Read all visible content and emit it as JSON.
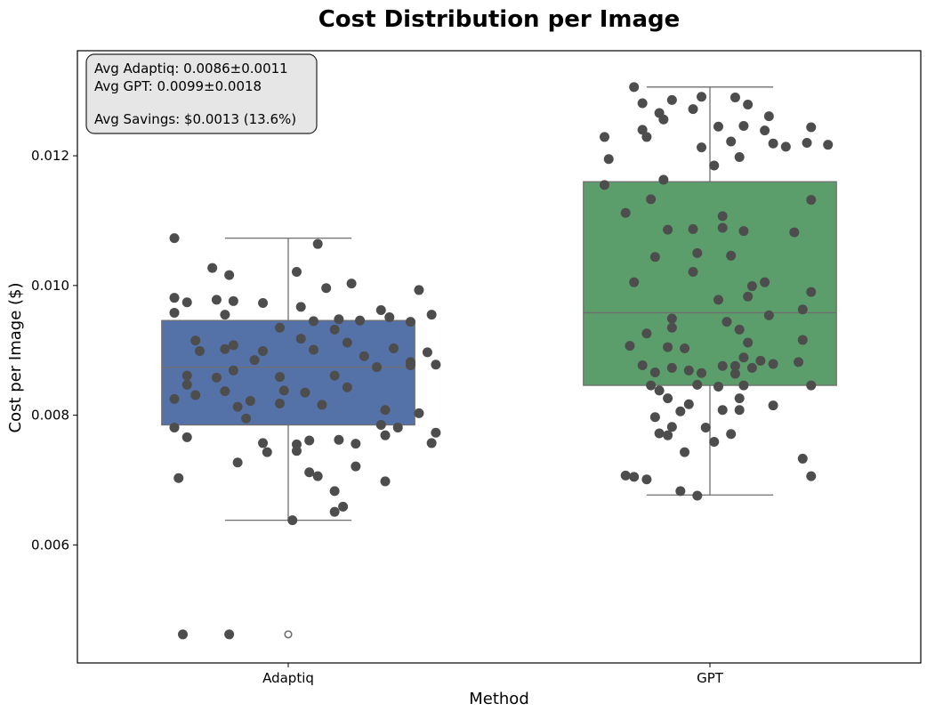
{
  "chart_data": {
    "type": "box",
    "title": "Cost Distribution per Image",
    "xlabel": "Method",
    "ylabel": "Cost per Image ($)",
    "categories": [
      "Adaptiq",
      "GPT"
    ],
    "ylim": [
      0.00418,
      0.01362
    ],
    "yticks": [
      0.006,
      0.008,
      0.01,
      0.012
    ],
    "ytick_labels": [
      "0.006",
      "0.008",
      "0.010",
      "0.012"
    ],
    "grid": false,
    "colors": {
      "Adaptiq": "#5572a8",
      "GPT": "#5b9e6c",
      "points": "#4d4d4d",
      "whisker": "#6e6e6e"
    },
    "stats_box": {
      "lines": [
        "Avg Adaptiq: 0.0086±0.0011",
        "Avg GPT: 0.0099±0.0018",
        "",
        "Avg Savings: $0.0013 (13.6%)"
      ],
      "position": "top-left"
    },
    "series": [
      {
        "name": "Adaptiq",
        "box": {
          "whisker_low": 0.00638,
          "q1": 0.00785,
          "median": 0.00874,
          "q3": 0.00946,
          "whisker_high": 0.01073
        },
        "outliers": [
          0.00462
        ],
        "points": [
          [
            -0.27,
            0.01073
          ],
          [
            0.07,
            0.01064
          ],
          [
            -0.18,
            0.01027
          ],
          [
            -0.14,
            0.01016
          ],
          [
            0.02,
            0.01021
          ],
          [
            0.15,
            0.01003
          ],
          [
            0.09,
            0.00996
          ],
          [
            0.31,
            0.00993
          ],
          [
            -0.27,
            0.00981
          ],
          [
            -0.17,
            0.00978
          ],
          [
            -0.24,
            0.00974
          ],
          [
            -0.13,
            0.00976
          ],
          [
            -0.06,
            0.00973
          ],
          [
            0.22,
            0.00962
          ],
          [
            0.03,
            0.00967
          ],
          [
            -0.27,
            0.00958
          ],
          [
            -0.15,
            0.00955
          ],
          [
            0.12,
            0.00948
          ],
          [
            0.24,
            0.00951
          ],
          [
            0.34,
            0.00955
          ],
          [
            0.06,
            0.00945
          ],
          [
            0.17,
            0.00946
          ],
          [
            0.29,
            0.00944
          ],
          [
            -0.02,
            0.00935
          ],
          [
            0.11,
            0.00932
          ],
          [
            -0.22,
            0.00915
          ],
          [
            0.03,
            0.00918
          ],
          [
            -0.13,
            0.00908
          ],
          [
            0.14,
            0.00912
          ],
          [
            -0.21,
            0.00899
          ],
          [
            -0.15,
            0.00902
          ],
          [
            -0.06,
            0.00899
          ],
          [
            0.06,
            0.00901
          ],
          [
            0.25,
            0.00903
          ],
          [
            0.33,
            0.00897
          ],
          [
            -0.08,
            0.00885
          ],
          [
            0.18,
            0.00891
          ],
          [
            0.29,
            0.00882
          ],
          [
            0.21,
            0.00874
          ],
          [
            0.29,
            0.00877
          ],
          [
            0.35,
            0.00878
          ],
          [
            -0.13,
            0.00869
          ],
          [
            0.11,
            0.00861
          ],
          [
            -0.24,
            0.00861
          ],
          [
            -0.17,
            0.00858
          ],
          [
            -0.02,
            0.00859
          ],
          [
            -0.24,
            0.00847
          ],
          [
            -0.15,
            0.00837
          ],
          [
            -0.01,
            0.00838
          ],
          [
            0.04,
            0.00835
          ],
          [
            0.14,
            0.00843
          ],
          [
            -0.22,
            0.00831
          ],
          [
            -0.09,
            0.00822
          ],
          [
            -0.27,
            0.00825
          ],
          [
            -0.12,
            0.00813
          ],
          [
            -0.02,
            0.00818
          ],
          [
            0.08,
            0.00816
          ],
          [
            0.23,
            0.00808
          ],
          [
            0.31,
            0.00803
          ],
          [
            -0.1,
            0.00795
          ],
          [
            0.22,
            0.00785
          ],
          [
            0.26,
            0.00781
          ],
          [
            -0.27,
            0.00781
          ],
          [
            -0.24,
            0.00766
          ],
          [
            0.23,
            0.00769
          ],
          [
            0.35,
            0.00773
          ],
          [
            0.05,
            0.00761
          ],
          [
            0.12,
            0.00762
          ],
          [
            0.16,
            0.00756
          ],
          [
            -0.06,
            0.00757
          ],
          [
            0.02,
            0.00755
          ],
          [
            0.34,
            0.00757
          ],
          [
            -0.05,
            0.00743
          ],
          [
            0.02,
            0.00745
          ],
          [
            -0.12,
            0.00727
          ],
          [
            0.16,
            0.00721
          ],
          [
            0.05,
            0.00712
          ],
          [
            0.07,
            0.00706
          ],
          [
            -0.26,
            0.00703
          ],
          [
            0.23,
            0.00698
          ],
          [
            0.11,
            0.00683
          ],
          [
            0.13,
            0.00659
          ],
          [
            0.11,
            0.00651
          ],
          [
            0.01,
            0.00638
          ],
          [
            -0.25,
            0.00462
          ],
          [
            -0.14,
            0.00462
          ]
        ]
      },
      {
        "name": "GPT",
        "box": {
          "whisker_low": 0.00677,
          "q1": 0.00846,
          "median": 0.00958,
          "q3": 0.0116,
          "whisker_high": 0.01306
        },
        "outliers": [],
        "points": [
          [
            -0.18,
            0.01306
          ],
          [
            -0.02,
            0.01291
          ],
          [
            -0.09,
            0.01286
          ],
          [
            0.06,
            0.0129
          ],
          [
            -0.16,
            0.01281
          ],
          [
            0.09,
            0.01279
          ],
          [
            -0.12,
            0.01266
          ],
          [
            -0.04,
            0.01272
          ],
          [
            0.14,
            0.01261
          ],
          [
            -0.11,
            0.01256
          ],
          [
            0.02,
            0.01245
          ],
          [
            0.08,
            0.01246
          ],
          [
            0.24,
            0.01244
          ],
          [
            -0.16,
            0.0124
          ],
          [
            0.13,
            0.01239
          ],
          [
            -0.15,
            0.01229
          ],
          [
            0.05,
            0.01222
          ],
          [
            0.15,
            0.01219
          ],
          [
            -0.25,
            0.01229
          ],
          [
            0.28,
            0.01217
          ],
          [
            0.18,
            0.01214
          ],
          [
            0.23,
            0.0122
          ],
          [
            -0.02,
            0.01213
          ],
          [
            0.07,
            0.01198
          ],
          [
            -0.24,
            0.01195
          ],
          [
            0.01,
            0.01185
          ],
          [
            -0.11,
            0.01163
          ],
          [
            -0.25,
            0.01155
          ],
          [
            0.24,
            0.01132
          ],
          [
            -0.2,
            0.01112
          ],
          [
            -0.14,
            0.01133
          ],
          [
            0.03,
            0.01107
          ],
          [
            -0.1,
            0.01086
          ],
          [
            0.03,
            0.01089
          ],
          [
            -0.04,
            0.01087
          ],
          [
            0.2,
            0.01082
          ],
          [
            0.08,
            0.01084
          ],
          [
            -0.03,
            0.0105
          ],
          [
            -0.13,
            0.01044
          ],
          [
            0.05,
            0.01046
          ],
          [
            -0.04,
            0.01021
          ],
          [
            -0.18,
            0.01005
          ],
          [
            0.13,
            0.01005
          ],
          [
            0.1,
            0.00999
          ],
          [
            0.24,
            0.0099
          ],
          [
            0.02,
            0.00978
          ],
          [
            0.09,
            0.00983
          ],
          [
            0.22,
            0.00963
          ],
          [
            0.14,
            0.00954
          ],
          [
            -0.09,
            0.00949
          ],
          [
            0.04,
            0.00944
          ],
          [
            -0.09,
            0.00935
          ],
          [
            0.07,
            0.00932
          ],
          [
            -0.15,
            0.00926
          ],
          [
            0.09,
            0.00912
          ],
          [
            0.22,
            0.00916
          ],
          [
            -0.1,
            0.00905
          ],
          [
            -0.19,
            0.00907
          ],
          [
            -0.06,
            0.00903
          ],
          [
            0.08,
            0.00889
          ],
          [
            0.12,
            0.00884
          ],
          [
            0.15,
            0.00879
          ],
          [
            0.03,
            0.00876
          ],
          [
            -0.16,
            0.00877
          ],
          [
            0.06,
            0.00876
          ],
          [
            0.1,
            0.00873
          ],
          [
            0.21,
            0.00882
          ],
          [
            -0.09,
            0.00873
          ],
          [
            -0.13,
            0.00866
          ],
          [
            -0.05,
            0.00869
          ],
          [
            -0.02,
            0.00865
          ],
          [
            0.06,
            0.00864
          ],
          [
            -0.14,
            0.00846
          ],
          [
            -0.12,
            0.00838
          ],
          [
            -0.03,
            0.00847
          ],
          [
            0.02,
            0.00844
          ],
          [
            0.08,
            0.00846
          ],
          [
            0.24,
            0.00846
          ],
          [
            -0.1,
            0.00826
          ],
          [
            0.07,
            0.00826
          ],
          [
            -0.05,
            0.00817
          ],
          [
            0.15,
            0.00815
          ],
          [
            -0.07,
            0.00806
          ],
          [
            0.03,
            0.00808
          ],
          [
            0.07,
            0.00808
          ],
          [
            -0.13,
            0.00797
          ],
          [
            -0.09,
            0.00782
          ],
          [
            -0.01,
            0.00781
          ],
          [
            -0.12,
            0.00772
          ],
          [
            0.05,
            0.00771
          ],
          [
            -0.1,
            0.00769
          ],
          [
            0.01,
            0.00759
          ],
          [
            -0.06,
            0.00743
          ],
          [
            0.22,
            0.00733
          ],
          [
            -0.2,
            0.00707
          ],
          [
            0.24,
            0.00706
          ],
          [
            -0.18,
            0.00705
          ],
          [
            -0.15,
            0.00701
          ],
          [
            -0.07,
            0.00683
          ],
          [
            -0.03,
            0.00676
          ]
        ]
      }
    ]
  }
}
